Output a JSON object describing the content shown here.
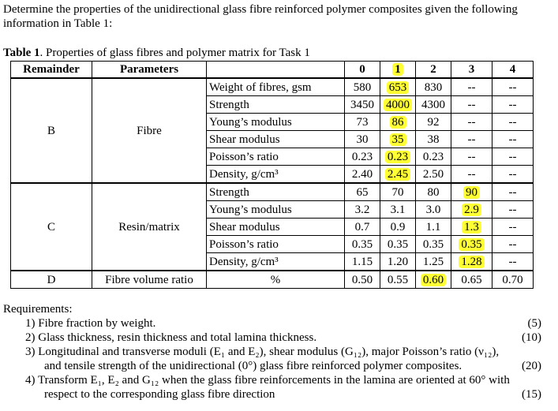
{
  "intro": "Determine the properties of the unidirectional glass fibre reinforced polymer composites given the following information in Table 1:",
  "caption": {
    "label": "Table 1",
    "text": ". Properties of glass fibres and polymer matrix for Task 1"
  },
  "table": {
    "headers": [
      "Remainder",
      "Parameters",
      "",
      "0",
      "1",
      "2",
      "3",
      "4"
    ],
    "groups": [
      {
        "remainder": "B",
        "parameter": "Fibre",
        "rows": [
          {
            "label": "Weight of fibres, gsm",
            "values": [
              "580",
              "653",
              "830",
              "--",
              "--"
            ]
          },
          {
            "label": "Strength",
            "values": [
              "3450",
              "4000",
              "4300",
              "--",
              "--"
            ]
          },
          {
            "label": "Young’s modulus",
            "values": [
              "73",
              "86",
              "92",
              "--",
              "--"
            ]
          },
          {
            "label": "Shear modulus",
            "values": [
              "30",
              "35",
              "38",
              "--",
              "--"
            ]
          },
          {
            "label": "Poisson’s ratio",
            "values": [
              "0.23",
              "0.23",
              "0.23",
              "--",
              "--"
            ]
          },
          {
            "label": "Density, g/cm³",
            "values": [
              "2.40",
              "2.45",
              "2.50",
              "--",
              "--"
            ]
          }
        ]
      },
      {
        "remainder": "C",
        "parameter": "Resin/matrix",
        "rows": [
          {
            "label": "Strength",
            "values": [
              "65",
              "70",
              "80",
              "90",
              "--"
            ]
          },
          {
            "label": "Young’s modulus",
            "values": [
              "3.2",
              "3.1",
              "3.0",
              "2.9",
              "--"
            ]
          },
          {
            "label": "Shear modulus",
            "values": [
              "0.7",
              "0.9",
              "1.1",
              "1.3",
              "--"
            ]
          },
          {
            "label": "Poisson’s ratio",
            "values": [
              "0.35",
              "0.35",
              "0.35",
              "0.35",
              "--"
            ]
          },
          {
            "label": "Density, g/cm³",
            "values": [
              "1.15",
              "1.20",
              "1.25",
              "1.28",
              "--"
            ]
          }
        ]
      },
      {
        "remainder": "D",
        "parameter": "Fibre volume ratio",
        "rows": [
          {
            "label": "%",
            "values": [
              "0.50",
              "0.55",
              "0.60",
              "0.65",
              "0.70"
            ]
          }
        ]
      }
    ],
    "highlight_color": "#ffff33"
  },
  "requirements": {
    "title": "Requirements:",
    "items": [
      {
        "num": "1)",
        "text": "Fibre fraction by weight.",
        "cont": "",
        "marks": "(5)"
      },
      {
        "num": "2)",
        "text": "Glass thickness, resin thickness and total lamina thickness.",
        "cont": "",
        "marks": "(10)"
      },
      {
        "num": "3)",
        "text": "Longitudinal and transverse moduli (E₁ and E₂), shear modulus (G₁₂), major Poisson’s ratio (ν₁₂),",
        "cont": "and tensile strength of the unidirectional (0°) glass fibre reinforced polymer composites.",
        "marks": "(20)"
      },
      {
        "num": "4)",
        "text": "Transform E₁, E₂ and G₁₂ when the glass fibre reinforcements in the lamina are oriented at 60° with",
        "cont": "respect to the corresponding glass fibre direction",
        "marks": "(15)"
      }
    ]
  }
}
